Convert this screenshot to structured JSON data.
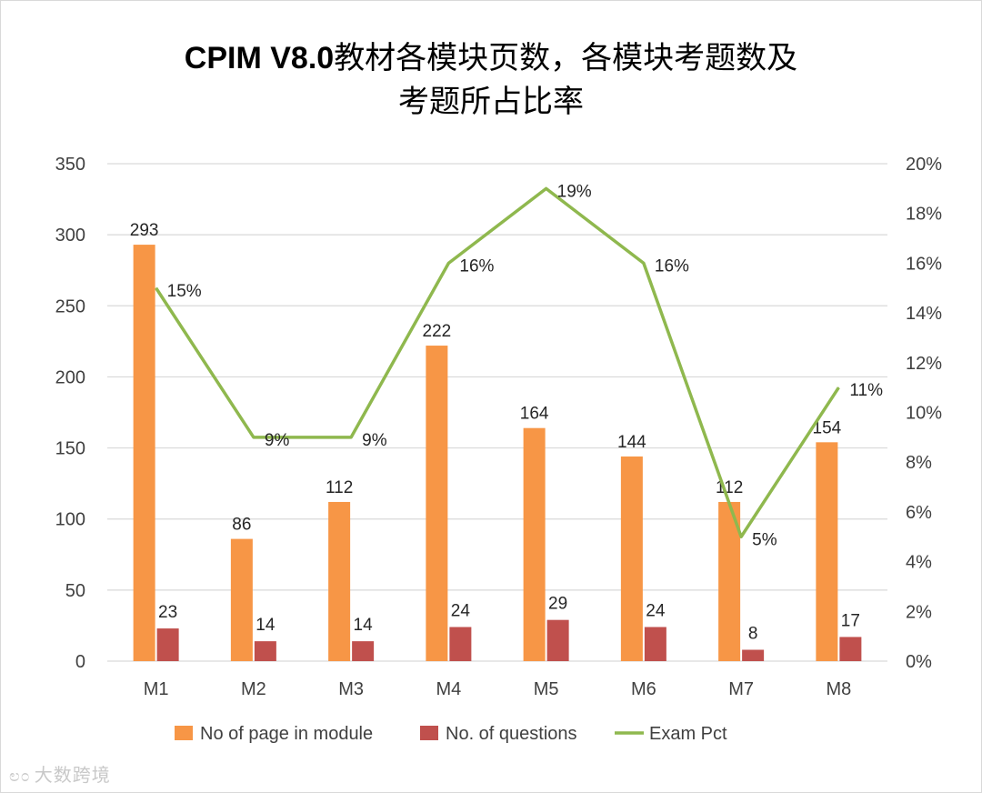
{
  "chart_data": {
    "type": "bar",
    "title_line1_bold": "CPIM V8.0",
    "title_line1_rest": "教材各模块页数，各模块考题数及",
    "title_line2": "考题所占比率",
    "categories": [
      "M1",
      "M2",
      "M3",
      "M4",
      "M5",
      "M6",
      "M7",
      "M8"
    ],
    "series": [
      {
        "name": "No of page in module",
        "type": "bar",
        "axis": "left",
        "color": "#f79646",
        "values": [
          293,
          86,
          112,
          222,
          164,
          144,
          112,
          154
        ]
      },
      {
        "name": "No. of questions",
        "type": "bar",
        "axis": "left",
        "color": "#c0504d",
        "values": [
          23,
          14,
          14,
          24,
          29,
          24,
          8,
          17
        ]
      },
      {
        "name": "Exam Pct",
        "type": "line",
        "axis": "right",
        "color": "#8fb84e",
        "values": [
          15,
          9,
          9,
          16,
          19,
          16,
          5,
          11
        ],
        "labels": [
          "15%",
          "9%",
          "9%",
          "16%",
          "19%",
          "16%",
          "5%",
          "11%"
        ]
      }
    ],
    "left_axis": {
      "min": 0,
      "max": 350,
      "step": 50,
      "ticks": [
        "0",
        "50",
        "100",
        "150",
        "200",
        "250",
        "300",
        "350"
      ]
    },
    "right_axis": {
      "min": 0,
      "max": 20,
      "step": 2,
      "ticks": [
        "0%",
        "2%",
        "4%",
        "6%",
        "8%",
        "10%",
        "12%",
        "14%",
        "16%",
        "18%",
        "20%"
      ]
    },
    "grid": true,
    "legend_position": "bottom",
    "gridline_color": "#d9d9d9"
  },
  "watermark": {
    "icon": "ಲ೦",
    "text": "大数跨境"
  }
}
